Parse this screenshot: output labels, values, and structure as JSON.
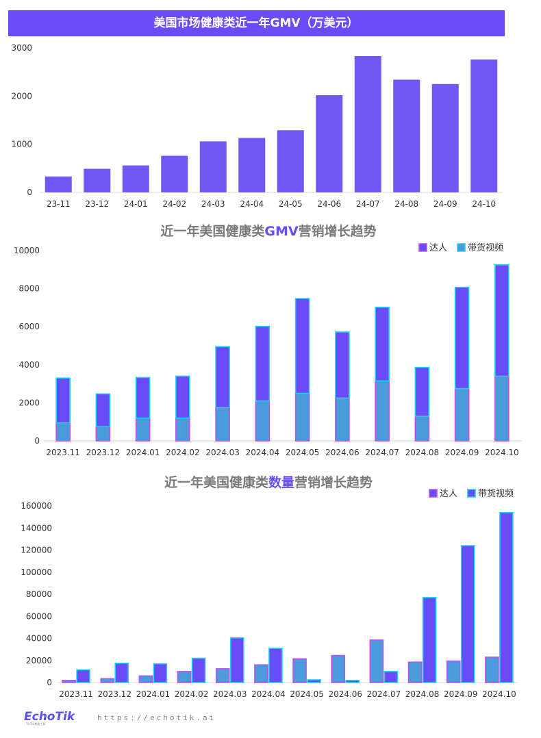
{
  "colors": {
    "banner": "#6a4cf6",
    "gmv_bar": "#7158f4",
    "creator": "#4a9bd9",
    "video": "#6a4cf6",
    "cyan_edge": "#19d4f0",
    "pink_edge": "#c04ef0",
    "axis": "#d9d9d9",
    "title_gray": "#7a7a7a"
  },
  "chart_data": [
    {
      "type": "bar",
      "title": "美国市场健康类近一年GMV（万美元）",
      "categories": [
        "23-11",
        "23-12",
        "24-01",
        "24-02",
        "24-03",
        "24-04",
        "24-05",
        "24-06",
        "24-07",
        "24-08",
        "24-09",
        "24-10"
      ],
      "values": [
        330,
        490,
        560,
        760,
        1060,
        1130,
        1290,
        2020,
        2830,
        2340,
        2250,
        2760
      ],
      "ylim": [
        0,
        3000
      ],
      "yticks": [
        "0",
        "1000",
        "2000",
        "3000"
      ],
      "grid": false
    },
    {
      "type": "bar",
      "stacked": true,
      "title_parts": [
        "近一年美国健康类",
        "GMV",
        "营销增长趋势"
      ],
      "categories": [
        "2023.11",
        "2023.12",
        "2024.01",
        "2024.02",
        "2024.03",
        "2024.04",
        "2024.05",
        "2024.06",
        "2024.07",
        "2024.08",
        "2024.09",
        "2024.10"
      ],
      "series": [
        {
          "name": "达人",
          "values": [
            950,
            750,
            1200,
            1200,
            1750,
            2100,
            2500,
            2250,
            3150,
            1300,
            2750,
            3400
          ]
        },
        {
          "name": "带货视频",
          "values": [
            2350,
            1720,
            2130,
            2200,
            3200,
            3920,
            4980,
            3470,
            3870,
            2560,
            5320,
            5850
          ]
        }
      ],
      "ylim": [
        0,
        10000
      ],
      "yticks": [
        "0",
        "2000",
        "4000",
        "6000",
        "8000",
        "10000"
      ],
      "legend": "top-right",
      "grid": false
    },
    {
      "type": "bar",
      "grouped": true,
      "title_parts": [
        "近一年美国健康类",
        "数量",
        "营销增长趋势"
      ],
      "categories": [
        "2023.11",
        "2023.12",
        "2024.01",
        "2024.02",
        "2024.03",
        "2024.04",
        "2024.05",
        "2024.06",
        "2024.07",
        "2024.08",
        "2024.09",
        "2024.10"
      ],
      "series": [
        {
          "name": "达人",
          "values": [
            2000,
            3500,
            6000,
            10000,
            12500,
            16000,
            21500,
            24500,
            38500,
            18500,
            19500,
            23000
          ]
        },
        {
          "name": "带货视频",
          "values": [
            11500,
            17500,
            17000,
            22000,
            40500,
            31000,
            2500,
            2000,
            10000,
            77000,
            124000,
            154000
          ]
        }
      ],
      "ylim": [
        0,
        160000
      ],
      "yticks": [
        "0",
        "20000",
        "40000",
        "60000",
        "80000",
        "100000",
        "120000",
        "140000",
        "160000"
      ],
      "legend": "top-right",
      "grid": false
    }
  ],
  "footer": {
    "logo": "EchoTik",
    "logo_sub": "TikTok数据工具",
    "url": "https://echotik.ai"
  }
}
